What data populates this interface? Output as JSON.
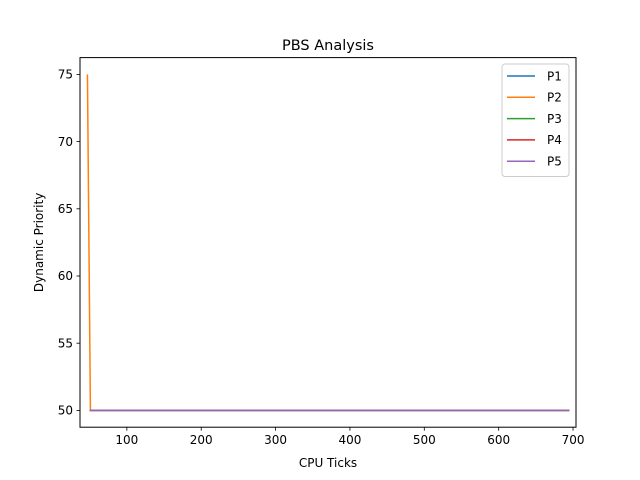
{
  "chart_data": {
    "type": "line",
    "title": "PBS Analysis",
    "xlabel": "CPU Ticks",
    "ylabel": "Dynamic Priority",
    "xlim": [
      37,
      704
    ],
    "ylim": [
      48.75,
      76.25
    ],
    "xticks": [
      100,
      200,
      300,
      400,
      500,
      600,
      700
    ],
    "yticks": [
      50,
      55,
      60,
      65,
      70,
      75
    ],
    "grid": false,
    "legend_position": "top-right",
    "series": [
      {
        "name": "P1",
        "color": "#1f77b4",
        "x": [
          50,
          695
        ],
        "y": [
          50,
          50
        ]
      },
      {
        "name": "P2",
        "color": "#ff7f0e",
        "x": [
          47,
          51,
          695
        ],
        "y": [
          75,
          50,
          50
        ]
      },
      {
        "name": "P3",
        "color": "#2ca02c",
        "x": [
          50,
          695
        ],
        "y": [
          50,
          50
        ]
      },
      {
        "name": "P4",
        "color": "#d62728",
        "x": [
          50,
          695
        ],
        "y": [
          50,
          50
        ]
      },
      {
        "name": "P5",
        "color": "#9467bd",
        "x": [
          50,
          695
        ],
        "y": [
          50,
          50
        ]
      }
    ]
  }
}
